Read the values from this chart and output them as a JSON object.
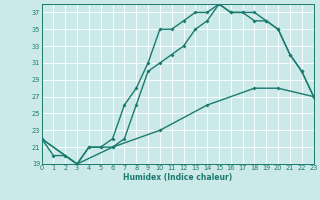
{
  "xlabel": "Humidex (Indice chaleur)",
  "bg_color": "#cce9e9",
  "grid_color": "#ffffff",
  "line_color": "#1a7a6e",
  "xlim": [
    0,
    23
  ],
  "ylim": [
    19,
    38
  ],
  "xticks": [
    0,
    1,
    2,
    3,
    4,
    5,
    6,
    7,
    8,
    9,
    10,
    11,
    12,
    13,
    14,
    15,
    16,
    17,
    18,
    19,
    20,
    21,
    22,
    23
  ],
  "yticks": [
    19,
    21,
    23,
    25,
    27,
    29,
    31,
    33,
    35,
    37
  ],
  "curve1_x": [
    0,
    1,
    2,
    3,
    4,
    5,
    6,
    7,
    8,
    9,
    10,
    11,
    12,
    13,
    14,
    15,
    16,
    17,
    18,
    19,
    20,
    21,
    22,
    23
  ],
  "curve1_y": [
    22,
    20,
    20,
    19,
    21,
    21,
    21,
    22,
    26,
    30,
    31,
    32,
    33,
    35,
    36,
    38,
    37,
    37,
    37,
    36,
    35,
    32,
    30,
    27
  ],
  "curve2_x": [
    0,
    3,
    4,
    5,
    6,
    7,
    8,
    9,
    10,
    11,
    12,
    13,
    14,
    15,
    16,
    17,
    18,
    19,
    20,
    21,
    22,
    23
  ],
  "curve2_y": [
    22,
    19,
    21,
    21,
    22,
    26,
    28,
    31,
    35,
    35,
    36,
    37,
    37,
    38,
    37,
    37,
    36,
    36,
    35,
    32,
    30,
    27
  ],
  "curve3_x": [
    0,
    3,
    6,
    10,
    14,
    18,
    20,
    23
  ],
  "curve3_y": [
    22,
    19,
    21,
    23,
    26,
    28,
    28,
    27
  ],
  "linewidth": 1.0,
  "markersize": 2.0
}
